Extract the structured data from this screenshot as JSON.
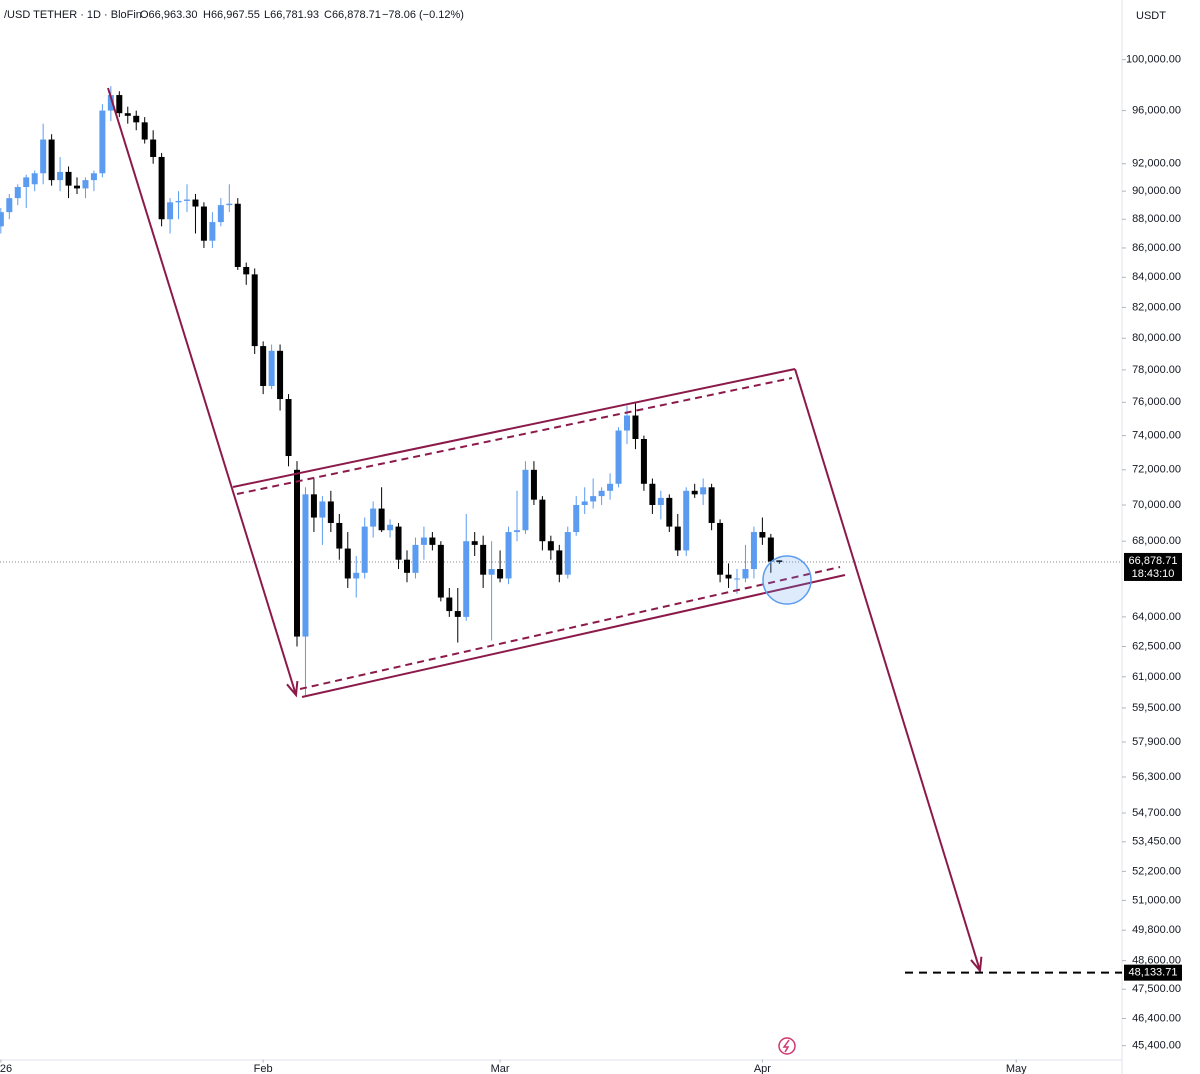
{
  "header": [
    "/USD TETHER · 1D · BloFin",
    "O66,963.30",
    "H66,967.55",
    "L66,781.93",
    "C66,878.71",
    "−78.06 (−0.12%)"
  ],
  "currency": "USDT",
  "chart_data": {
    "type": "candlestick",
    "log_scale": true,
    "up_color": "#5b9cf0",
    "down_color": "#000000",
    "x": [
      0,
      1,
      2,
      3,
      4,
      5,
      6,
      7,
      8,
      9,
      10,
      11,
      12,
      13,
      14,
      15,
      16,
      17,
      18,
      19,
      20,
      21,
      22,
      23,
      24,
      25,
      26,
      27,
      28,
      29,
      30,
      31,
      32,
      33,
      34,
      35,
      36,
      37,
      38,
      39,
      40,
      41,
      42,
      43,
      44,
      45,
      46,
      47,
      48,
      49,
      50,
      51,
      52,
      53,
      54,
      55,
      56,
      57,
      58,
      59,
      60,
      61,
      62,
      63,
      64,
      65,
      66,
      67,
      68,
      69,
      70,
      71,
      72,
      73,
      74,
      75,
      76,
      77,
      78,
      79,
      80,
      81,
      82,
      83,
      84,
      85,
      86,
      87,
      88,
      89,
      90,
      91,
      92
    ],
    "open": [
      87500,
      88500,
      89500,
      90300,
      90500,
      91300,
      93800,
      90800,
      91400,
      90400,
      90200,
      90800,
      91300,
      96000,
      97200,
      95800,
      95600,
      95100,
      93800,
      92500,
      88000,
      89200,
      89300,
      89400,
      88900,
      86500,
      87800,
      89000,
      89100,
      84700,
      84200,
      79500,
      77000,
      79200,
      76200,
      72000,
      63000,
      70600,
      69300,
      70200,
      69000,
      67600,
      66000,
      66300,
      68800,
      69800,
      68600,
      68800,
      67000,
      66300,
      67800,
      68200,
      67800,
      65000,
      64300,
      64000,
      68000,
      67800,
      66200,
      66500,
      66000,
      68500,
      68600,
      72000,
      70300,
      68000,
      67500,
      66200,
      68500,
      70000,
      70200,
      70500,
      70800,
      71200,
      74300,
      75200,
      73800,
      71200,
      70000,
      70400,
      68800,
      67500,
      70800,
      70600,
      71000,
      69000,
      66200,
      66000,
      66000,
      66500,
      68500,
      68200,
      66963.3
    ],
    "high": [
      88800,
      89800,
      90500,
      91200,
      91500,
      95000,
      94200,
      92500,
      91800,
      91000,
      91000,
      91500,
      96500,
      97900,
      97500,
      96300,
      96000,
      95500,
      94500,
      92800,
      89500,
      90000,
      90500,
      89800,
      89200,
      88500,
      89500,
      90500,
      89500,
      85000,
      84600,
      79800,
      79600,
      79600,
      76500,
      72500,
      71000,
      71500,
      70500,
      70800,
      69500,
      68500,
      67200,
      69300,
      70200,
      71000,
      69200,
      69000,
      67500,
      68200,
      68800,
      68500,
      68000,
      65500,
      65500,
      69500,
      68500,
      68300,
      68000,
      67500,
      68800,
      70800,
      72500,
      72500,
      70500,
      68300,
      67800,
      68800,
      70500,
      71000,
      71500,
      71000,
      71800,
      74500,
      75800,
      76000,
      74000,
      71500,
      70800,
      70600,
      69500,
      71000,
      71200,
      71500,
      71200,
      69200,
      66800,
      66500,
      67800,
      68800,
      69300,
      68400,
      66967.55
    ],
    "low": [
      87000,
      88000,
      89000,
      88800,
      90000,
      90500,
      90400,
      90000,
      89500,
      89800,
      89500,
      90000,
      91000,
      95200,
      95500,
      95000,
      94500,
      93500,
      92000,
      87500,
      87000,
      88000,
      88500,
      87000,
      86000,
      86000,
      87500,
      88500,
      84500,
      83500,
      79000,
      76500,
      76800,
      75500,
      72200,
      62500,
      60100,
      68500,
      67800,
      68500,
      67000,
      65500,
      65000,
      66000,
      68200,
      68500,
      68200,
      66500,
      65800,
      66000,
      67000,
      67500,
      64800,
      64000,
      62700,
      63800,
      67200,
      65500,
      62800,
      65800,
      65700,
      68000,
      68400,
      70000,
      67500,
      67000,
      65800,
      66000,
      68300,
      69500,
      69800,
      70000,
      70300,
      71000,
      73500,
      73200,
      70800,
      69500,
      69200,
      68500,
      67200,
      67200,
      70400,
      70000,
      68600,
      65800,
      65500,
      65200,
      65800,
      66000,
      67800,
      66300,
      66781.93
    ],
    "close": [
      88500,
      89500,
      90300,
      91000,
      91300,
      93800,
      90800,
      91400,
      90400,
      90200,
      90800,
      91300,
      96000,
      97200,
      95800,
      95600,
      95100,
      93800,
      92500,
      88000,
      89200,
      89300,
      89400,
      88900,
      86500,
      87800,
      89000,
      89100,
      84700,
      84200,
      79500,
      77000,
      79200,
      76200,
      72800,
      63000,
      70600,
      69300,
      70200,
      69000,
      67600,
      66000,
      66300,
      68800,
      69800,
      68600,
      68900,
      67000,
      66300,
      67800,
      68200,
      67800,
      65000,
      64300,
      64000,
      68000,
      67800,
      66200,
      66500,
      66000,
      68500,
      68600,
      72000,
      70300,
      68000,
      67500,
      66200,
      68500,
      70000,
      70200,
      70500,
      70800,
      71200,
      74300,
      75200,
      73800,
      71200,
      70000,
      70400,
      68800,
      67500,
      70800,
      70600,
      71000,
      69000,
      66200,
      66000,
      66000,
      66500,
      68500,
      68200,
      66900,
      66878.71
    ],
    "xlim": [
      -0.1,
      132.5
    ],
    "xticks": [
      {
        "value": 0,
        "label": "26"
      },
      {
        "value": 31,
        "label": "Feb"
      },
      {
        "value": 59,
        "label": "Mar"
      },
      {
        "value": 90,
        "label": "Apr"
      },
      {
        "value": 120,
        "label": "May"
      }
    ],
    "ylim": [
      44900,
      102400
    ],
    "yticks": [
      {
        "value": 100000,
        "label": "100,000.00"
      },
      {
        "value": 96000,
        "label": "96,000.00"
      },
      {
        "value": 92000,
        "label": "92,000.00"
      },
      {
        "value": 90000,
        "label": "90,000.00"
      },
      {
        "value": 88000,
        "label": "88,000.00"
      },
      {
        "value": 86000,
        "label": "86,000.00"
      },
      {
        "value": 84000,
        "label": "84,000.00"
      },
      {
        "value": 82000,
        "label": "82,000.00"
      },
      {
        "value": 80000,
        "label": "80,000.00"
      },
      {
        "value": 78000,
        "label": "78,000.00"
      },
      {
        "value": 76000,
        "label": "76,000.00"
      },
      {
        "value": 74000,
        "label": "74,000.00"
      },
      {
        "value": 72000,
        "label": "72,000.00"
      },
      {
        "value": 70000,
        "label": "70,000.00"
      },
      {
        "value": 68000,
        "label": "68,000.00"
      },
      {
        "value": 64000,
        "label": "64,000.00"
      },
      {
        "value": 62500,
        "label": "62,500.00"
      },
      {
        "value": 61000,
        "label": "61,000.00"
      },
      {
        "value": 59500,
        "label": "59,500.00"
      },
      {
        "value": 57900,
        "label": "57,900.00"
      },
      {
        "value": 56300,
        "label": "56,300.00"
      },
      {
        "value": 54700,
        "label": "54,700.00"
      },
      {
        "value": 53450,
        "label": "53,450.00"
      },
      {
        "value": 52200,
        "label": "52,200.00"
      },
      {
        "value": 51000,
        "label": "51,000.00"
      },
      {
        "value": 49800,
        "label": "49,800.00"
      },
      {
        "value": 48600,
        "label": "48,600.00"
      },
      {
        "value": 47500,
        "label": "47,500.00"
      },
      {
        "value": 46400,
        "label": "46,400.00"
      },
      {
        "value": 45400,
        "label": "45,400.00"
      }
    ],
    "last_price": {
      "value": 66878.71,
      "label": "66,878.71"
    },
    "countdown": "18:43:10",
    "target": {
      "value": 48133.71,
      "label": "48,133.71"
    },
    "drawing_color": "#8b1a4a"
  }
}
